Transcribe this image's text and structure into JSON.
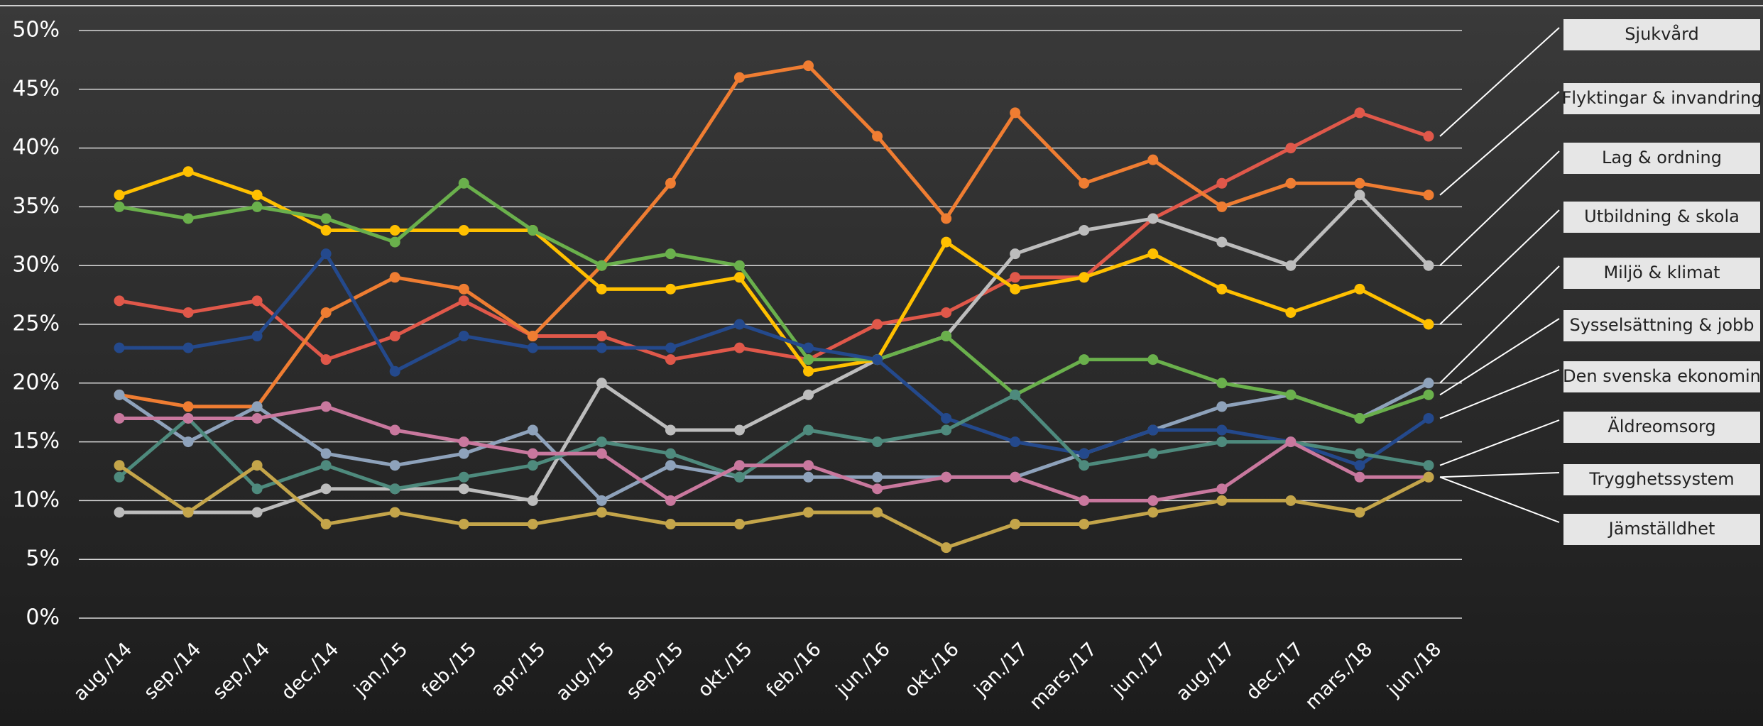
{
  "chart_data": {
    "type": "line",
    "categories": [
      "aug./14",
      "sep./14",
      "sep./14",
      "dec./14",
      "jan./15",
      "feb./15",
      "apr./15",
      "aug./15",
      "sep./15",
      "okt./15",
      "feb./16",
      "jun./16",
      "okt./16",
      "jan./17",
      "mars./17",
      "jun./17",
      "aug./17",
      "dec./17",
      "mars./18",
      "jun./18"
    ],
    "series": [
      {
        "name": "Sjukvård",
        "color": "#e0584a",
        "values": [
          27,
          26,
          27,
          22,
          24,
          27,
          24,
          24,
          22,
          23,
          22,
          25,
          26,
          29,
          29,
          34,
          37,
          40,
          43,
          41
        ]
      },
      {
        "name": "Flyktingar & invandring",
        "color": "#ef7d32",
        "values": [
          19,
          18,
          18,
          26,
          29,
          28,
          24,
          30,
          37,
          46,
          47,
          41,
          34,
          43,
          37,
          39,
          35,
          37,
          37,
          36
        ]
      },
      {
        "name": "Lag & ordning",
        "color": "#bdbdbd",
        "values": [
          9,
          9,
          9,
          11,
          11,
          11,
          10,
          20,
          16,
          16,
          19,
          22,
          24,
          31,
          33,
          34,
          32,
          30,
          36,
          30
        ]
      },
      {
        "name": "Utbildning & skola",
        "color": "#ffc000",
        "values": [
          36,
          38,
          36,
          33,
          33,
          33,
          33,
          28,
          28,
          29,
          21,
          22,
          32,
          28,
          29,
          31,
          28,
          26,
          28,
          25
        ]
      },
      {
        "name": "Miljö & klimat",
        "color": "#8ea2bb",
        "values": [
          19,
          15,
          18,
          14,
          13,
          14,
          16,
          10,
          13,
          12,
          12,
          12,
          12,
          12,
          14,
          16,
          18,
          19,
          17,
          20
        ]
      },
      {
        "name": "Sysselsättning & jobb",
        "color": "#6ab04c",
        "values": [
          35,
          34,
          35,
          34,
          32,
          37,
          33,
          30,
          31,
          30,
          22,
          22,
          24,
          19,
          22,
          22,
          20,
          19,
          17,
          19
        ]
      },
      {
        "name": "Den svenska ekonomin",
        "color": "#24498c",
        "values": [
          23,
          23,
          24,
          31,
          21,
          24,
          23,
          23,
          23,
          25,
          23,
          22,
          17,
          15,
          14,
          16,
          16,
          15,
          13,
          17
        ]
      },
      {
        "name": "Äldreomsorg",
        "color": "#4e8a7d",
        "values": [
          12,
          17,
          11,
          13,
          11,
          12,
          13,
          15,
          14,
          12,
          16,
          15,
          16,
          19,
          13,
          14,
          15,
          15,
          14,
          13
        ]
      },
      {
        "name": "Trygghetssystem",
        "color": "#c9789e",
        "values": [
          17,
          17,
          17,
          18,
          16,
          15,
          14,
          14,
          10,
          13,
          13,
          11,
          12,
          12,
          10,
          10,
          11,
          15,
          12,
          12
        ]
      },
      {
        "name": "Jämställdhet",
        "color": "#c4a54a",
        "values": [
          13,
          9,
          13,
          8,
          9,
          8,
          8,
          9,
          8,
          8,
          9,
          9,
          6,
          8,
          8,
          9,
          10,
          10,
          9,
          12
        ]
      }
    ],
    "ylim": [
      0,
      50
    ],
    "yticks": [
      {
        "value": 0,
        "label": "0%"
      },
      {
        "value": 5,
        "label": "5%"
      },
      {
        "value": 10,
        "label": "10%"
      },
      {
        "value": 15,
        "label": "15%"
      },
      {
        "value": 20,
        "label": "20%"
      },
      {
        "value": 25,
        "label": "25%"
      },
      {
        "value": 30,
        "label": "30%"
      },
      {
        "value": 35,
        "label": "35%"
      },
      {
        "value": 40,
        "label": "40%"
      },
      {
        "value": 45,
        "label": "45%"
      },
      {
        "value": 50,
        "label": "50%"
      }
    ],
    "grid": true
  }
}
